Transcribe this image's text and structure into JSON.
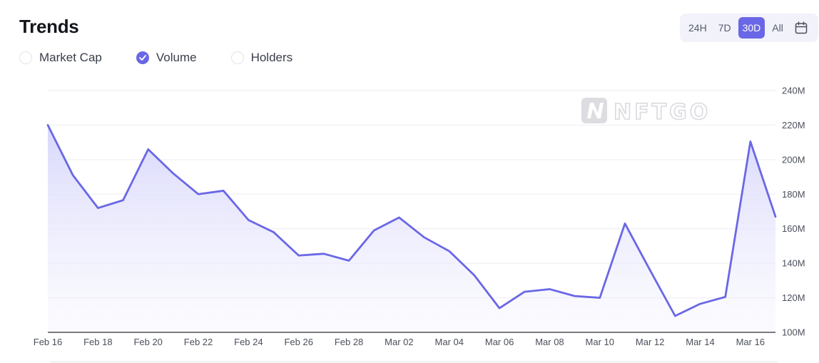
{
  "header": {
    "title": "Trends"
  },
  "legend": {
    "items": [
      {
        "label": "Market Cap",
        "checked": false
      },
      {
        "label": "Volume",
        "checked": true
      },
      {
        "label": "Holders",
        "checked": false
      }
    ]
  },
  "range_selector": {
    "options": [
      "24H",
      "7D",
      "30D",
      "All"
    ],
    "active": "30D",
    "calendar_icon": "calendar-icon"
  },
  "watermark": {
    "text": "NFTGO",
    "icon": "nftgo-logo"
  },
  "colors": {
    "line": "#6a67e6",
    "fill_top": "#d9d8fb",
    "grid": "#eeeef2",
    "axis": "#2a2d36"
  },
  "chart_data": {
    "type": "area",
    "x_tick_labels": [
      "Feb 16",
      "Feb 18",
      "Feb 20",
      "Feb 22",
      "Feb 24",
      "Feb 26",
      "Feb 28",
      "Mar 02",
      "Mar 04",
      "Mar 06",
      "Mar 08",
      "Mar 10",
      "Mar 12",
      "Mar 14",
      "Mar 16"
    ],
    "y_tick_labels": [
      "100M",
      "120M",
      "140M",
      "160M",
      "180M",
      "200M",
      "220M",
      "240M"
    ],
    "ylim": [
      100,
      240
    ],
    "y_unit": "M",
    "grid": true,
    "x": [
      "Feb 16",
      "Feb 17",
      "Feb 18",
      "Feb 19",
      "Feb 20",
      "Feb 21",
      "Feb 22",
      "Feb 23",
      "Feb 24",
      "Feb 25",
      "Feb 26",
      "Feb 27",
      "Feb 28",
      "Mar 01",
      "Mar 02",
      "Mar 03",
      "Mar 04",
      "Mar 05",
      "Mar 06",
      "Mar 07",
      "Mar 08",
      "Mar 09",
      "Mar 10",
      "Mar 11",
      "Mar 12",
      "Mar 13",
      "Mar 14",
      "Mar 15",
      "Mar 16",
      "Mar 17"
    ],
    "series": [
      {
        "name": "Volume",
        "values": [
          220,
          191,
          172,
          176.5,
          206,
          192,
          180,
          182,
          165,
          158,
          144.5,
          145.5,
          141.5,
          159,
          166.5,
          155,
          147,
          133,
          114,
          123.5,
          125,
          121,
          120,
          163,
          136,
          109.5,
          116.5,
          120.5,
          210.5,
          167
        ]
      }
    ]
  }
}
